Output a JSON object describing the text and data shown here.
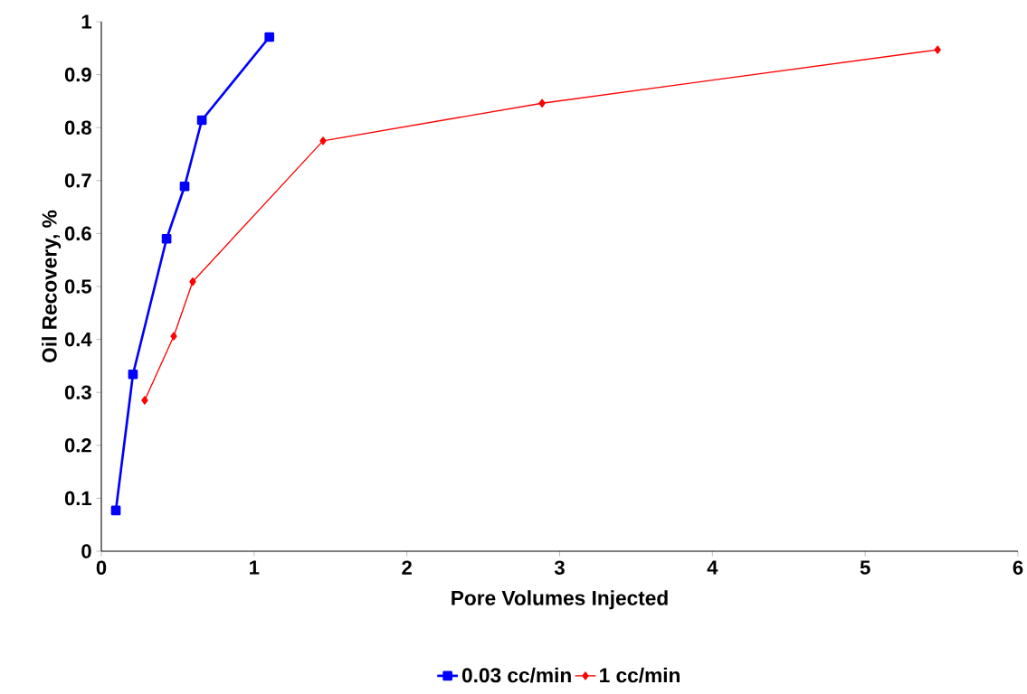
{
  "chart_data": {
    "type": "line",
    "xlabel": "Pore Volumes Injected",
    "ylabel": "Oil Recovery, %",
    "xlim": [
      0,
      6
    ],
    "xticks": [
      0,
      1,
      2,
      3,
      4,
      5,
      6
    ],
    "ylim": [
      0,
      1
    ],
    "yticks": [
      0,
      0.1,
      0.2,
      0.3,
      0.4,
      0.5,
      0.6,
      0.7,
      0.8,
      0.9,
      1
    ],
    "grid": false,
    "legend": "bottom",
    "series": [
      {
        "name": "0.03 cc/min",
        "color": "#0000ff",
        "marker": "square",
        "x": [
          0.095,
          0.207,
          0.427,
          0.545,
          0.658,
          1.1
        ],
        "values": [
          0.077,
          0.334,
          0.59,
          0.689,
          0.814,
          0.971
        ]
      },
      {
        "name": "1 cc/min",
        "color": "#ff0000",
        "marker": "diamond",
        "x": [
          0.284,
          0.474,
          0.598,
          1.451,
          2.885,
          5.474
        ],
        "values": [
          0.285,
          0.406,
          0.509,
          0.775,
          0.846,
          0.947
        ]
      }
    ]
  }
}
